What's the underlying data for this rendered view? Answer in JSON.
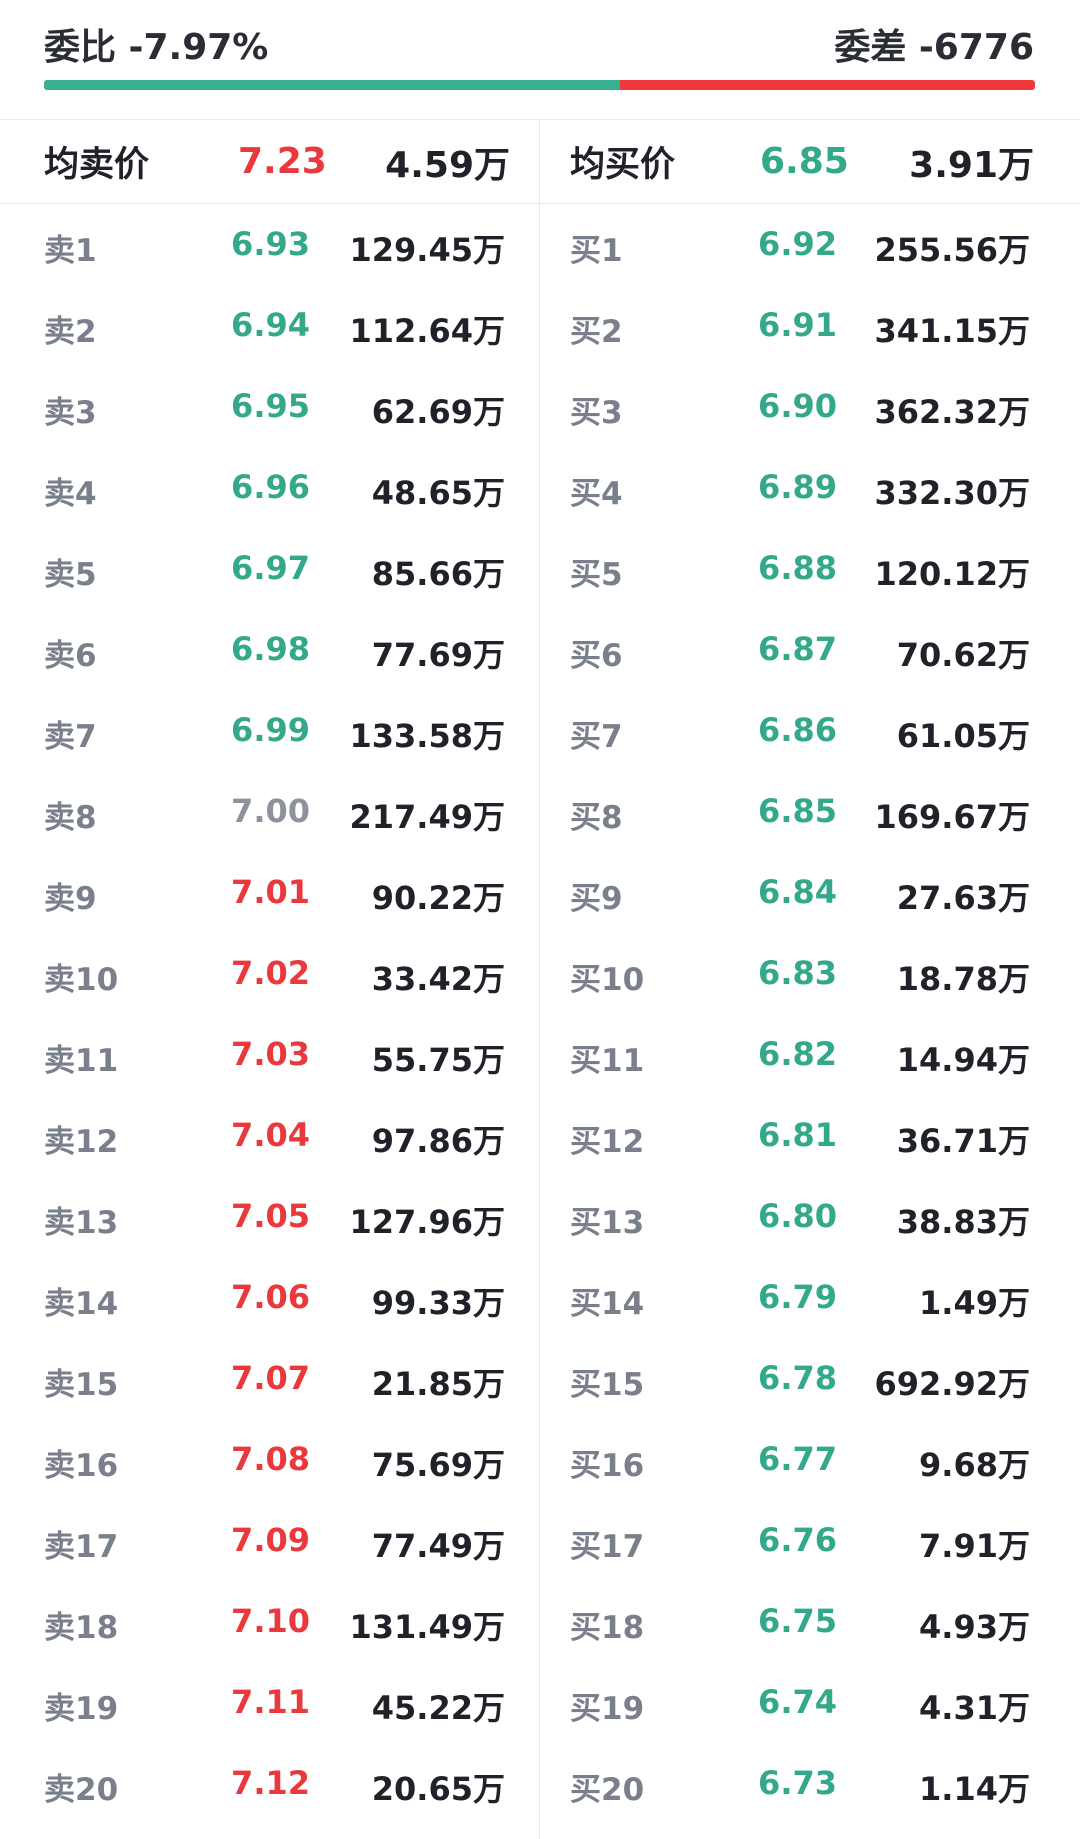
{
  "header": {
    "ratio_label": "委比 -7.97%",
    "diff_label": "委差 -6776",
    "buy_fraction": 0.5816,
    "colors": {
      "buy": "#35b18e",
      "sell": "#f2383c"
    }
  },
  "avg": {
    "sell_label": "均卖价",
    "sell_price": "7.23",
    "sell_vol": "4.59万",
    "buy_label": "均买价",
    "buy_price": "6.85",
    "buy_vol": "3.91万"
  },
  "sell": [
    {
      "level": "卖1",
      "price": "6.93",
      "vol": "129.45万",
      "tone": "green"
    },
    {
      "level": "卖2",
      "price": "6.94",
      "vol": "112.64万",
      "tone": "green"
    },
    {
      "level": "卖3",
      "price": "6.95",
      "vol": "62.69万",
      "tone": "green"
    },
    {
      "level": "卖4",
      "price": "6.96",
      "vol": "48.65万",
      "tone": "green"
    },
    {
      "level": "卖5",
      "price": "6.97",
      "vol": "85.66万",
      "tone": "green"
    },
    {
      "level": "卖6",
      "price": "6.98",
      "vol": "77.69万",
      "tone": "green"
    },
    {
      "level": "卖7",
      "price": "6.99",
      "vol": "133.58万",
      "tone": "green"
    },
    {
      "level": "卖8",
      "price": "7.00",
      "vol": "217.49万",
      "tone": "gray"
    },
    {
      "level": "卖9",
      "price": "7.01",
      "vol": "90.22万",
      "tone": "red"
    },
    {
      "level": "卖10",
      "price": "7.02",
      "vol": "33.42万",
      "tone": "red"
    },
    {
      "level": "卖11",
      "price": "7.03",
      "vol": "55.75万",
      "tone": "red"
    },
    {
      "level": "卖12",
      "price": "7.04",
      "vol": "97.86万",
      "tone": "red"
    },
    {
      "level": "卖13",
      "price": "7.05",
      "vol": "127.96万",
      "tone": "red"
    },
    {
      "level": "卖14",
      "price": "7.06",
      "vol": "99.33万",
      "tone": "red"
    },
    {
      "level": "卖15",
      "price": "7.07",
      "vol": "21.85万",
      "tone": "red"
    },
    {
      "level": "卖16",
      "price": "7.08",
      "vol": "75.69万",
      "tone": "red"
    },
    {
      "level": "卖17",
      "price": "7.09",
      "vol": "77.49万",
      "tone": "red"
    },
    {
      "level": "卖18",
      "price": "7.10",
      "vol": "131.49万",
      "tone": "red"
    },
    {
      "level": "卖19",
      "price": "7.11",
      "vol": "45.22万",
      "tone": "red"
    },
    {
      "level": "卖20",
      "price": "7.12",
      "vol": "20.65万",
      "tone": "red"
    }
  ],
  "buy": [
    {
      "level": "买1",
      "price": "6.92",
      "vol": "255.56万",
      "tone": "green"
    },
    {
      "level": "买2",
      "price": "6.91",
      "vol": "341.15万",
      "tone": "green"
    },
    {
      "level": "买3",
      "price": "6.90",
      "vol": "362.32万",
      "tone": "green"
    },
    {
      "level": "买4",
      "price": "6.89",
      "vol": "332.30万",
      "tone": "green"
    },
    {
      "level": "买5",
      "price": "6.88",
      "vol": "120.12万",
      "tone": "green"
    },
    {
      "level": "买6",
      "price": "6.87",
      "vol": "70.62万",
      "tone": "green"
    },
    {
      "level": "买7",
      "price": "6.86",
      "vol": "61.05万",
      "tone": "green"
    },
    {
      "level": "买8",
      "price": "6.85",
      "vol": "169.67万",
      "tone": "green"
    },
    {
      "level": "买9",
      "price": "6.84",
      "vol": "27.63万",
      "tone": "green"
    },
    {
      "level": "买10",
      "price": "6.83",
      "vol": "18.78万",
      "tone": "green"
    },
    {
      "level": "买11",
      "price": "6.82",
      "vol": "14.94万",
      "tone": "green"
    },
    {
      "level": "买12",
      "price": "6.81",
      "vol": "36.71万",
      "tone": "green"
    },
    {
      "level": "买13",
      "price": "6.80",
      "vol": "38.83万",
      "tone": "green"
    },
    {
      "level": "买14",
      "price": "6.79",
      "vol": "1.49万",
      "tone": "green"
    },
    {
      "level": "买15",
      "price": "6.78",
      "vol": "692.92万",
      "tone": "green"
    },
    {
      "level": "买16",
      "price": "6.77",
      "vol": "9.68万",
      "tone": "green"
    },
    {
      "level": "买17",
      "price": "6.76",
      "vol": "7.91万",
      "tone": "green"
    },
    {
      "level": "买18",
      "price": "6.75",
      "vol": "4.93万",
      "tone": "green"
    },
    {
      "level": "买19",
      "price": "6.74",
      "vol": "4.31万",
      "tone": "green"
    },
    {
      "level": "买20",
      "price": "6.73",
      "vol": "1.14万",
      "tone": "green"
    }
  ]
}
